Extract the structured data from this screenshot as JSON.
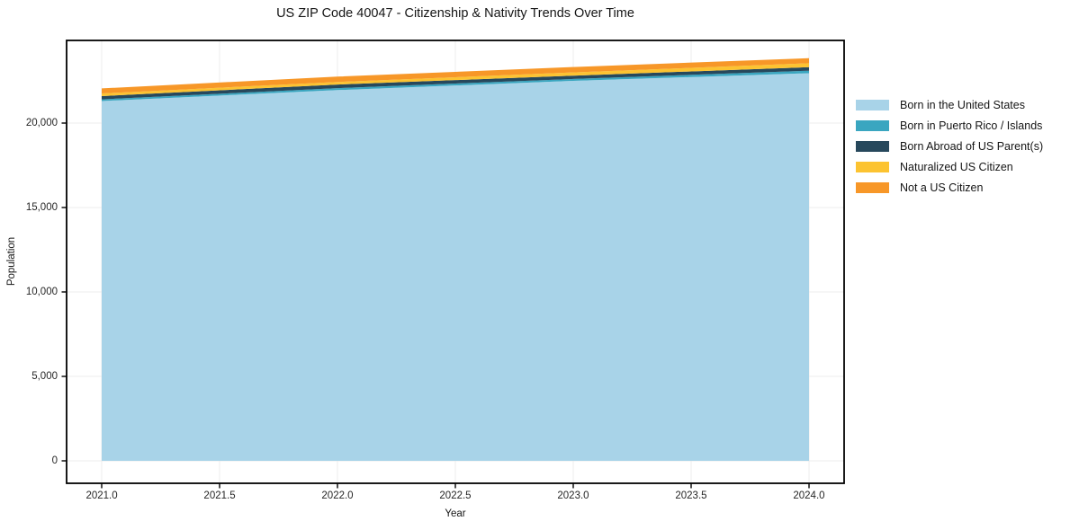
{
  "title": "US ZIP Code 40047 - Citizenship & Nativity Trends Over Time",
  "chart_data": {
    "type": "area",
    "stacked": true,
    "title": "US ZIP Code 40047 - Citizenship & Nativity Trends Over Time",
    "xlabel": "Year",
    "ylabel": "Population",
    "x": [
      2021,
      2022,
      2023,
      2024
    ],
    "series": [
      {
        "name": "Born in the United States",
        "color": "#A8D3E8",
        "values": [
          21300,
          21950,
          22500,
          22950
        ]
      },
      {
        "name": "Born in Puerto Rico / Islands",
        "color": "#3AA6C0",
        "values": [
          105,
          120,
          110,
          150
        ]
      },
      {
        "name": "Born Abroad of US Parent(s)",
        "color": "#27485C",
        "values": [
          190,
          210,
          200,
          210
        ]
      },
      {
        "name": "Naturalized US Citizen",
        "color": "#FCC331",
        "values": [
          160,
          150,
          190,
          230
        ]
      },
      {
        "name": "Not a US Citizen",
        "color": "#F79728",
        "values": [
          295,
          320,
          320,
          300
        ]
      }
    ],
    "totals": [
      22050,
      22750,
      23320,
      23840
    ],
    "xticks": {
      "values": [
        2021.0,
        2021.5,
        2022.0,
        2022.5,
        2023.0,
        2023.5,
        2024.0
      ],
      "labels": [
        "2021.0",
        "2021.5",
        "2022.0",
        "2022.5",
        "2023.0",
        "2023.5",
        "2024.0"
      ]
    },
    "yticks": {
      "values": [
        0,
        5000,
        10000,
        15000,
        20000
      ],
      "labels": [
        "0",
        "5,000",
        "10,000",
        "15,000",
        "20,000"
      ]
    },
    "xlim": [
      2020.851,
      2024.149
    ],
    "ylim": [
      -1330,
      24893
    ],
    "grid": true,
    "legend_position": "right",
    "colors": {
      "grid": "#ececec",
      "spine": "#000000",
      "background": "#ffffff"
    }
  }
}
